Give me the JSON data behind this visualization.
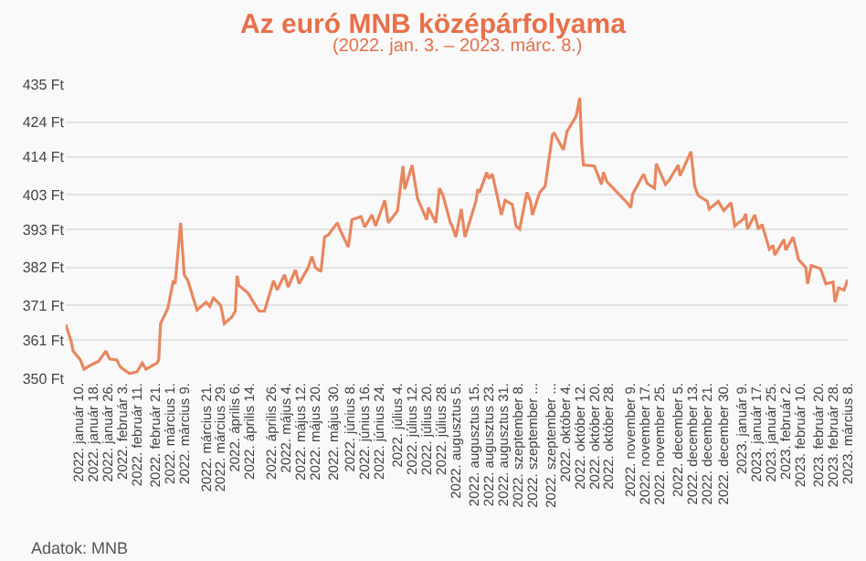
{
  "chart_data": {
    "type": "line",
    "title": "Az euró MNB középárfolyama",
    "subtitle": "(2022. jan. 3. – 2023. márc. 8.)",
    "annotations": [
      "Adatok: MNB"
    ],
    "x": [
      "2022-01-03",
      "2022-01-06",
      "2022-01-07",
      "2022-01-11",
      "2022-01-13",
      "2022-01-17",
      "2022-01-21",
      "2022-01-25",
      "2022-01-27",
      "2022-01-31",
      "2022-02-02",
      "2022-02-07",
      "2022-02-11",
      "2022-02-14",
      "2022-02-16",
      "2022-02-22",
      "2022-02-23",
      "2022-02-24",
      "2022-02-28",
      "2022-03-03",
      "2022-03-04",
      "2022-03-07",
      "2022-03-09",
      "2022-03-11",
      "2022-03-16",
      "2022-03-21",
      "2022-03-23",
      "2022-03-25",
      "2022-03-29",
      "2022-03-31",
      "2022-04-04",
      "2022-04-06",
      "2022-04-07",
      "2022-04-08",
      "2022-04-13",
      "2022-04-19",
      "2022-04-22",
      "2022-04-27",
      "2022-04-29",
      "2022-05-03",
      "2022-05-05",
      "2022-05-09",
      "2022-05-11",
      "2022-05-16",
      "2022-05-18",
      "2022-05-20",
      "2022-05-23",
      "2022-05-25",
      "2022-05-27",
      "2022-06-01",
      "2022-06-03",
      "2022-06-07",
      "2022-06-09",
      "2022-06-14",
      "2022-06-16",
      "2022-06-20",
      "2022-06-22",
      "2022-06-27",
      "2022-06-29",
      "2022-07-04",
      "2022-07-07",
      "2022-07-08",
      "2022-07-12",
      "2022-07-15",
      "2022-07-20",
      "2022-07-21",
      "2022-07-25",
      "2022-07-27",
      "2022-07-29",
      "2022-08-02",
      "2022-08-03",
      "2022-08-05",
      "2022-08-08",
      "2022-08-10",
      "2022-08-16",
      "2022-08-17",
      "2022-08-18",
      "2022-08-22",
      "2022-08-23",
      "2022-08-25",
      "2022-08-30",
      "2022-09-01",
      "2022-09-05",
      "2022-09-07",
      "2022-09-09",
      "2022-09-13",
      "2022-09-15",
      "2022-09-16",
      "2022-09-20",
      "2022-09-23",
      "2022-09-27",
      "2022-09-28",
      "2022-10-03",
      "2022-10-05",
      "2022-10-06",
      "2022-10-10",
      "2022-10-12",
      "2022-10-13",
      "2022-10-14",
      "2022-10-20",
      "2022-10-24",
      "2022-10-25",
      "2022-10-27",
      "2022-11-07",
      "2022-11-09",
      "2022-11-10",
      "2022-11-16",
      "2022-11-18",
      "2022-11-22",
      "2022-11-23",
      "2022-11-28",
      "2022-11-30",
      "2022-12-05",
      "2022-12-06",
      "2022-12-12",
      "2022-12-14",
      "2022-12-16",
      "2022-12-21",
      "2022-12-22",
      "2022-12-27",
      "2022-12-30",
      "2023-01-03",
      "2023-01-05",
      "2023-01-10",
      "2023-01-11",
      "2023-01-12",
      "2023-01-16",
      "2023-01-18",
      "2023-01-20",
      "2023-01-24",
      "2023-01-26",
      "2023-01-27",
      "2023-02-01",
      "2023-02-02",
      "2023-02-06",
      "2023-02-07",
      "2023-02-09",
      "2023-02-13",
      "2023-02-14",
      "2023-02-16",
      "2023-02-21",
      "2023-02-22",
      "2023-02-24",
      "2023-02-28",
      "2023-03-01",
      "2023-03-03",
      "2023-03-06",
      "2023-03-08"
    ],
    "series": [
      {
        "color": "#e8875f",
        "values": [
          365.5,
          360.6,
          357.9,
          355.3,
          352.6,
          353.9,
          354.9,
          357.9,
          355.6,
          355.3,
          353.2,
          351.4,
          351.8,
          354.4,
          352.6,
          354.4,
          355.3,
          365.8,
          370.2,
          378.2,
          377.3,
          394.9,
          379.9,
          378.2,
          369.7,
          372.0,
          370.8,
          373.2,
          371.1,
          365.8,
          367.6,
          369.4,
          379.6,
          376.8,
          374.6,
          369.4,
          369.4,
          378.2,
          375.5,
          379.9,
          376.4,
          381.3,
          377.3,
          382.0,
          385.2,
          382.0,
          380.8,
          390.8,
          391.4,
          394.9,
          392.3,
          387.9,
          395.8,
          396.7,
          393.7,
          397.2,
          394.0,
          401.4,
          394.9,
          398.4,
          411.3,
          404.6,
          411.6,
          401.9,
          395.8,
          399.3,
          394.9,
          404.9,
          402.8,
          394.9,
          394.0,
          390.8,
          398.9,
          390.8,
          401.1,
          404.6,
          403.7,
          409.5,
          407.7,
          409.0,
          397.2,
          401.4,
          400.2,
          394.0,
          393.1,
          403.7,
          401.1,
          397.2,
          403.7,
          405.5,
          420.4,
          420.8,
          416.0,
          421.3,
          422.2,
          425.7,
          431.0,
          417.8,
          411.6,
          411.3,
          406.0,
          409.5,
          406.7,
          400.7,
          399.3,
          403.2,
          409.0,
          406.3,
          404.9,
          412.0,
          406.0,
          407.2,
          411.6,
          408.5,
          415.5,
          405.5,
          402.8,
          401.1,
          398.9,
          401.1,
          398.4,
          400.7,
          394.0,
          396.1,
          397.5,
          393.1,
          397.2,
          393.1,
          394.4,
          387.3,
          388.4,
          385.6,
          390.1,
          387.0,
          390.8,
          388.7,
          384.3,
          382.0,
          377.3,
          382.6,
          381.7,
          380.3,
          377.3,
          377.8,
          372.0,
          376.1,
          375.5,
          378.5
        ]
      }
    ],
    "xlim": [
      "2022-01-03",
      "2023-03-08"
    ],
    "xticks": [
      {
        "value": "2022-01-10",
        "label": "2022. január 10."
      },
      {
        "value": "2022-01-18",
        "label": "2022. január 18."
      },
      {
        "value": "2022-01-26",
        "label": "2022. január 26."
      },
      {
        "value": "2022-02-03",
        "label": "2022. február 3."
      },
      {
        "value": "2022-02-11",
        "label": "2022. február 11."
      },
      {
        "value": "2022-02-21",
        "label": "2022. február 21."
      },
      {
        "value": "2022-03-01",
        "label": "2022. március 1."
      },
      {
        "value": "2022-03-09",
        "label": "2022. március 9."
      },
      {
        "value": "2022-03-21",
        "label": "2022. március 21."
      },
      {
        "value": "2022-03-29",
        "label": "2022. március 29."
      },
      {
        "value": "2022-04-06",
        "label": "2022. április 6."
      },
      {
        "value": "2022-04-14",
        "label": "2022. április 14."
      },
      {
        "value": "2022-04-26",
        "label": "2022. április 26."
      },
      {
        "value": "2022-05-04",
        "label": "2022. május 4."
      },
      {
        "value": "2022-05-12",
        "label": "2022. május 12."
      },
      {
        "value": "2022-05-20",
        "label": "2022. május 20."
      },
      {
        "value": "2022-05-30",
        "label": "2022. május 30."
      },
      {
        "value": "2022-06-08",
        "label": "2022. június 8."
      },
      {
        "value": "2022-06-16",
        "label": "2022. június 16."
      },
      {
        "value": "2022-06-24",
        "label": "2022. június 24."
      },
      {
        "value": "2022-07-04",
        "label": "2022. július 4."
      },
      {
        "value": "2022-07-12",
        "label": "2022. július 12."
      },
      {
        "value": "2022-07-20",
        "label": "2022. július 20."
      },
      {
        "value": "2022-07-28",
        "label": "2022. július 28."
      },
      {
        "value": "2022-08-05",
        "label": "2022. augusztus 5."
      },
      {
        "value": "2022-08-15",
        "label": "2022. augusztus 15."
      },
      {
        "value": "2022-08-23",
        "label": "2022. augusztus 23."
      },
      {
        "value": "2022-08-31",
        "label": "2022. augusztus 31."
      },
      {
        "value": "2022-09-08",
        "label": "2022. szeptember 8."
      },
      {
        "value": "2022-09-16",
        "label": "2022. szeptember ..."
      },
      {
        "value": "2022-09-26",
        "label": "2022. szeptember ..."
      },
      {
        "value": "2022-10-04",
        "label": "2022. október 4."
      },
      {
        "value": "2022-10-12",
        "label": "2022. október 12."
      },
      {
        "value": "2022-10-20",
        "label": "2022. október 20."
      },
      {
        "value": "2022-10-28",
        "label": "2022. október 28."
      },
      {
        "value": "2022-11-09",
        "label": "2022. november 9."
      },
      {
        "value": "2022-11-17",
        "label": "2022. november 17."
      },
      {
        "value": "2022-11-25",
        "label": "2022. november 25."
      },
      {
        "value": "2022-12-05",
        "label": "2022. december 5."
      },
      {
        "value": "2022-12-13",
        "label": "2022. december 13."
      },
      {
        "value": "2022-12-21",
        "label": "2022. december 21."
      },
      {
        "value": "2022-12-30",
        "label": "2022. december 30."
      },
      {
        "value": "2023-01-09",
        "label": "2023. január 9."
      },
      {
        "value": "2023-01-17",
        "label": "2023. január 17."
      },
      {
        "value": "2023-01-25",
        "label": "2023. január 25."
      },
      {
        "value": "2023-02-02",
        "label": "2023. február 2."
      },
      {
        "value": "2023-02-10",
        "label": "2023. február 10."
      },
      {
        "value": "2023-02-20",
        "label": "2023. február 20."
      },
      {
        "value": "2023-02-28",
        "label": "2023. február 28."
      },
      {
        "value": "2023-03-08",
        "label": "2023. március 8."
      }
    ],
    "ylim": [
      350,
      435
    ],
    "yticks": [
      {
        "value": 350,
        "label": "350 Ft"
      },
      {
        "value": 361,
        "label": "361 Ft"
      },
      {
        "value": 371,
        "label": "371 Ft"
      },
      {
        "value": 382,
        "label": "382 Ft"
      },
      {
        "value": 393,
        "label": "393 Ft"
      },
      {
        "value": 403,
        "label": "403 Ft"
      },
      {
        "value": 414,
        "label": "414 Ft"
      },
      {
        "value": 424,
        "label": "424 Ft"
      },
      {
        "value": 435,
        "label": "435 Ft"
      }
    ],
    "grid": "y"
  }
}
